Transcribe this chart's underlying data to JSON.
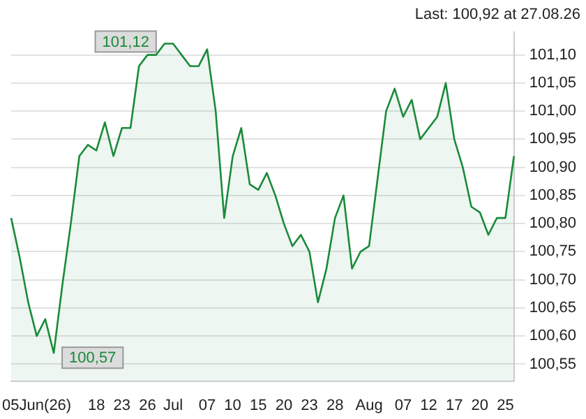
{
  "chart_data": {
    "type": "area",
    "title": "Last: 100,92 at 27.08.26",
    "categories": [
      null,
      null,
      null,
      "05Jun(26)",
      null,
      null,
      null,
      null,
      null,
      null,
      "18",
      null,
      null,
      "23",
      null,
      null,
      "26",
      null,
      null,
      "Jul",
      null,
      null,
      null,
      "07",
      null,
      null,
      "10",
      null,
      null,
      "15",
      null,
      null,
      "20",
      null,
      null,
      "23",
      null,
      null,
      "28",
      null,
      null,
      null,
      "Aug",
      null,
      null,
      null,
      "07",
      null,
      null,
      "12",
      null,
      null,
      "17",
      null,
      null,
      "20",
      null,
      null,
      "25",
      null
    ],
    "series": [
      {
        "color": "#1a8a3a",
        "values": [
          100.81,
          100.74,
          100.66,
          100.6,
          100.63,
          100.57,
          100.69,
          100.8,
          100.92,
          100.94,
          100.93,
          100.98,
          100.92,
          100.97,
          100.97,
          101.08,
          101.1,
          101.1,
          101.12,
          101.12,
          101.1,
          101.08,
          101.08,
          101.11,
          101.0,
          100.81,
          100.92,
          100.97,
          100.87,
          100.86,
          100.89,
          100.85,
          100.8,
          100.76,
          100.78,
          100.75,
          100.66,
          100.72,
          100.81,
          100.85,
          100.72,
          100.75,
          100.76,
          100.88,
          101.0,
          101.04,
          100.99,
          101.02,
          100.95,
          100.97,
          100.99,
          101.05,
          100.95,
          100.9,
          100.83,
          100.82,
          100.78,
          100.81,
          100.81,
          100.92
        ]
      }
    ],
    "ylim": [
      100.52,
      101.14
    ],
    "yticks": [
      {
        "value": 100.55,
        "label": "100,55"
      },
      {
        "value": 100.6,
        "label": "100,60"
      },
      {
        "value": 100.65,
        "label": "100,65"
      },
      {
        "value": 100.7,
        "label": "100,70"
      },
      {
        "value": 100.75,
        "label": "100,75"
      },
      {
        "value": 100.8,
        "label": "100,80"
      },
      {
        "value": 100.85,
        "label": "100,85"
      },
      {
        "value": 100.9,
        "label": "100,90"
      },
      {
        "value": 100.95,
        "label": "100,95"
      },
      {
        "value": 101.0,
        "label": "101,00"
      },
      {
        "value": 101.05,
        "label": "101,05"
      },
      {
        "value": 101.1,
        "label": "101,10"
      }
    ],
    "grid": "y",
    "legend": false,
    "annotations": [
      "101,12",
      "100,57"
    ]
  }
}
